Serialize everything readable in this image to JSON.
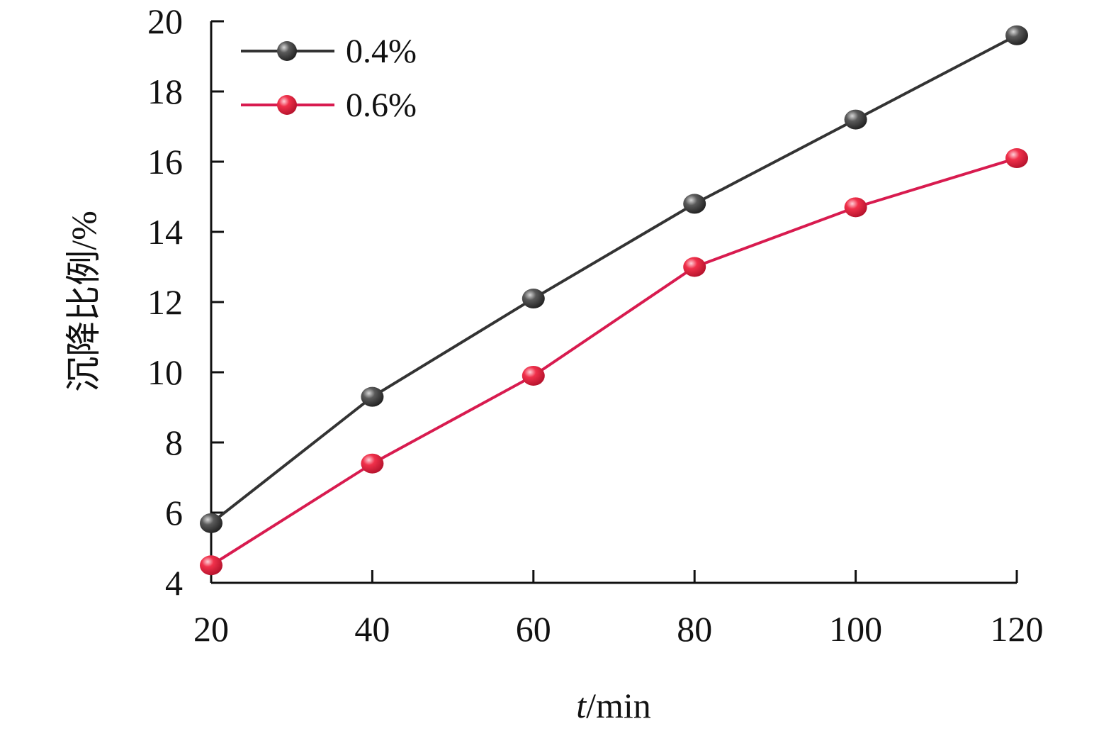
{
  "chart_data": {
    "type": "line",
    "xlabel_italic": "t",
    "xlabel_unit": "/min",
    "ylabel": "沉降比例/%",
    "x": [
      20,
      40,
      60,
      80,
      100,
      120
    ],
    "xticks": [
      "20",
      "40",
      "60",
      "80",
      "100",
      "120"
    ],
    "yticks": [
      "4",
      "6",
      "8",
      "10",
      "12",
      "14",
      "16",
      "18",
      "20"
    ],
    "xlim": [
      20,
      120
    ],
    "ylim": [
      4,
      20
    ],
    "grid": false,
    "legend_position": "top-left",
    "series": [
      {
        "name": "0.4%",
        "color": "#333333",
        "marker_color": "#3a3a3a",
        "values": [
          5.7,
          9.3,
          12.1,
          14.8,
          17.2,
          19.6
        ]
      },
      {
        "name": "0.6%",
        "color": "#d81b4f",
        "marker_color": "#e8243c",
        "values": [
          4.5,
          7.4,
          9.9,
          13.0,
          14.7,
          16.1
        ]
      }
    ]
  }
}
